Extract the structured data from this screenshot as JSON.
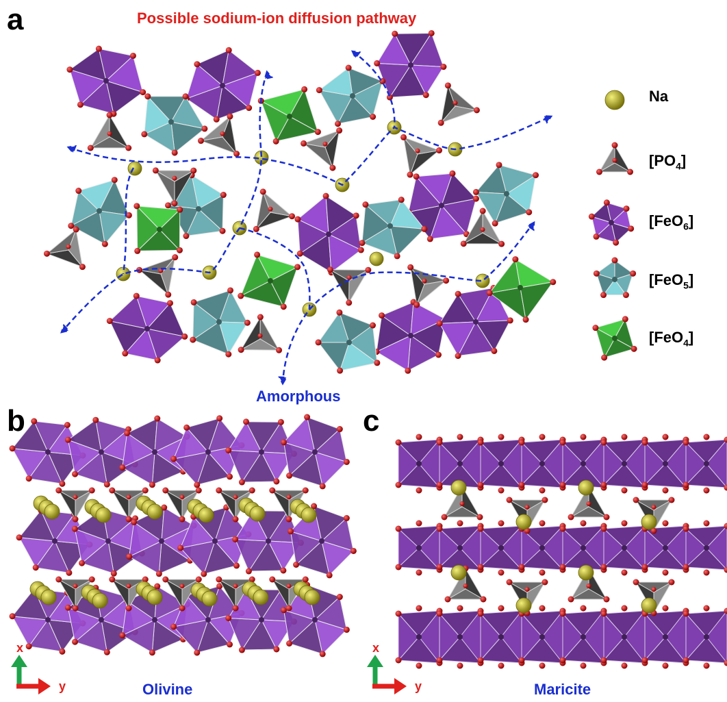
{
  "panels": {
    "a": {
      "letter": "a",
      "title": "Possible sodium-ion diffusion pathway",
      "caption": "Amorphous"
    },
    "b": {
      "letter": "b",
      "caption": "Olivine",
      "axis_x": "x",
      "axis_y": "y"
    },
    "c": {
      "letter": "c",
      "caption": "Maricite",
      "axis_x": "x",
      "axis_y": "y"
    }
  },
  "legend": [
    {
      "label": "Na",
      "sub": "",
      "suffix": ""
    },
    {
      "label": "[PO",
      "sub": "4",
      "suffix": "]"
    },
    {
      "label": "[FeO",
      "sub": "6",
      "suffix": "]"
    },
    {
      "label": "[FeO",
      "sub": "5",
      "suffix": "]"
    },
    {
      "label": "[FeO",
      "sub": "4",
      "suffix": "]"
    }
  ],
  "colors": {
    "na": "#b5ad1c",
    "po4": "#555555",
    "feo6": "#7f3fae",
    "feo5": "#6fb2b8",
    "feo4": "#3dab3a",
    "oxygen": "#d40000",
    "pathway": "#1a2fd0",
    "title_red": "#e0201c",
    "caption_blue": "#1a2fd0",
    "axis_x_green": "#1fa34a",
    "axis_y_red": "#e0201c"
  }
}
